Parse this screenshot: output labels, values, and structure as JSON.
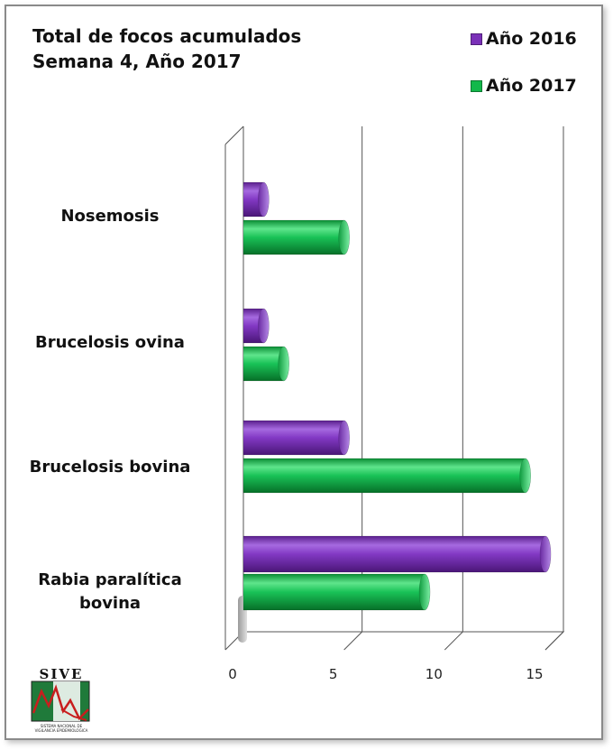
{
  "chart_data": {
    "type": "bar",
    "orientation": "horizontal",
    "title_line1": "Total de focos acumulados",
    "title_line2": "Semana 4, Año 2017",
    "categories": [
      "Nosemosis",
      "Brucelosis ovina",
      "Brucelosis bovina",
      "Rabia paralítica bovina"
    ],
    "series": [
      {
        "name": "Año 2016",
        "color": "#7a30b8",
        "values": [
          1,
          1,
          5,
          15
        ]
      },
      {
        "name": "Año 2017",
        "color": "#13b84a",
        "values": [
          5,
          2,
          14,
          9
        ]
      }
    ],
    "xlim": [
      0,
      15
    ],
    "x_ticks": [
      "0",
      "5",
      "10",
      "15"
    ],
    "grid": true,
    "legend_position": "top-right",
    "style": "3d-cylinder"
  },
  "logo": {
    "title": "SIVE",
    "subtitle_line1": "SISTEMA NACIONAL DE",
    "subtitle_line2": "VIGILANCIA EPIDEMIOLOGICA"
  }
}
